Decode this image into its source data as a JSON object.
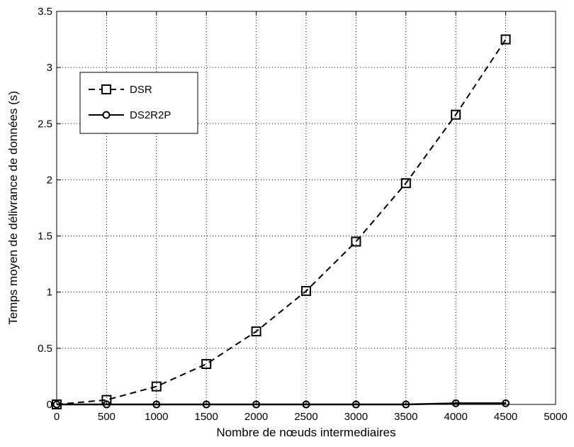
{
  "chart_data": {
    "type": "line",
    "xlabel": "Nombre de nœuds intermediaires",
    "ylabel": "Temps moyen de délivrance de données (s)",
    "xlim": [
      0,
      5000
    ],
    "ylim": [
      0,
      3.5
    ],
    "x_ticks": [
      "0",
      "500",
      "1000",
      "1500",
      "2000",
      "2500",
      "3000",
      "3500",
      "4000",
      "4500",
      "5000"
    ],
    "y_ticks": [
      "0",
      "0.5",
      "1",
      "1.5",
      "2",
      "2.5",
      "3",
      "3.5"
    ],
    "grid": true,
    "legend_position": "top-left",
    "series": [
      {
        "name": "DSR",
        "line_style": "dashed",
        "marker": "square",
        "color": "#000000",
        "x": [
          0,
          500,
          1000,
          1500,
          2000,
          2500,
          3000,
          3500,
          4000,
          4500
        ],
        "values": [
          0.0,
          0.04,
          0.16,
          0.36,
          0.65,
          1.01,
          1.45,
          1.97,
          2.58,
          3.25
        ]
      },
      {
        "name": "DS2R2P",
        "line_style": "solid",
        "marker": "circle",
        "color": "#000000",
        "x": [
          0,
          500,
          1000,
          1500,
          2000,
          2500,
          3000,
          3500,
          4000,
          4500
        ],
        "values": [
          0.0,
          0.0,
          0.0,
          0.0,
          0.0,
          0.0,
          0.0,
          0.0,
          0.01,
          0.01
        ]
      }
    ]
  }
}
